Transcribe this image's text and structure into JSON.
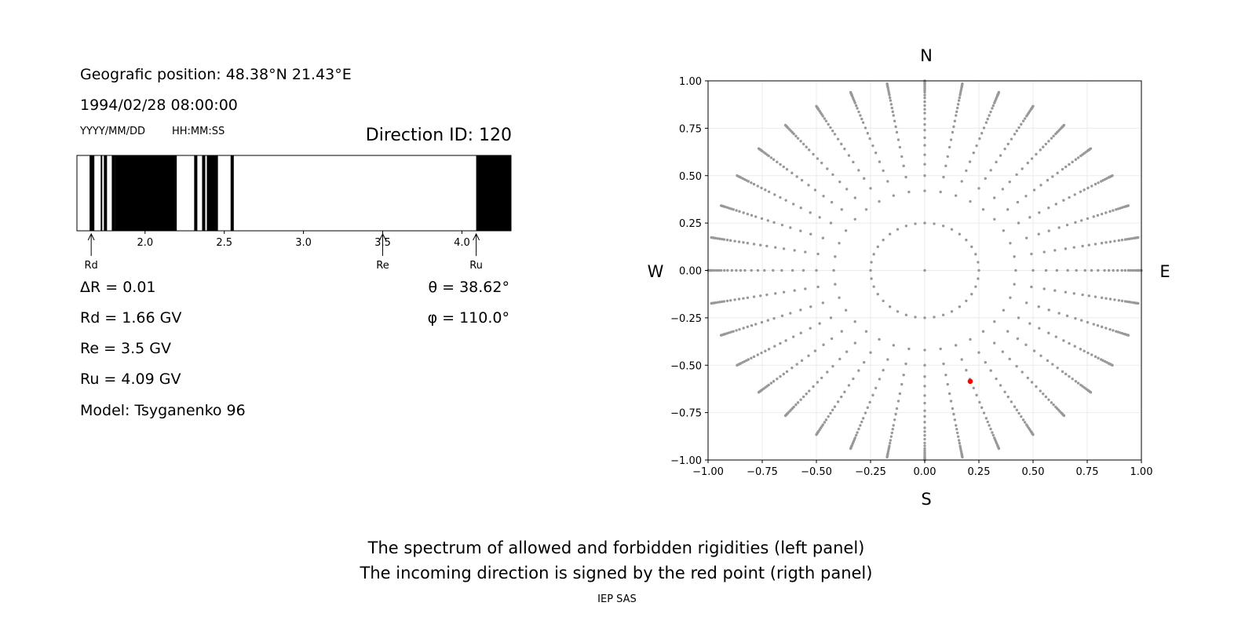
{
  "left_panel": {
    "position_line": "Geografic position: 48.38°N 21.43°E",
    "datetime_line": "1994/02/28 08:00:00",
    "date_format": "YYYY/MM/DD",
    "time_format": "HH:MM:SS",
    "direction_id": "Direction ID: 120",
    "delta_r": "ΔR = 0.01",
    "rd": "Rd = 1.66 GV",
    "re": "Re = 3.5 GV",
    "ru": "Ru = 4.09 GV",
    "model": "Model: Tsyganenko 96",
    "theta": "θ = 38.62°",
    "phi": "φ = 110.0°"
  },
  "right_panel": {
    "north": "N",
    "south": "S",
    "west": "W",
    "east": "E"
  },
  "caption": {
    "line1": "The spectrum of allowed and forbidden rigidities (left panel)",
    "line2": "The incoming direction is signed by the red point (rigth panel)",
    "credit": "IEP SAS"
  },
  "colors": {
    "forbidden": "#000000",
    "grid_dot": "#999999",
    "highlight": "#ff0000",
    "gridline": "#ebebeb"
  },
  "chart_data": [
    {
      "type": "bar",
      "name": "rigidity-spectrum",
      "xlim": [
        1.57,
        4.31
      ],
      "ticks": [
        2.0,
        2.5,
        3.0,
        3.5,
        4.0
      ],
      "tick_labels": [
        "2.0",
        "2.5",
        "3.0",
        "3.5",
        "4.0"
      ],
      "forbidden_intervals": [
        [
          1.65,
          1.68
        ],
        [
          1.72,
          1.73
        ],
        [
          1.74,
          1.76
        ],
        [
          1.79,
          1.81
        ],
        [
          1.81,
          2.2
        ],
        [
          2.31,
          2.33
        ],
        [
          2.36,
          2.38
        ],
        [
          2.39,
          2.46
        ],
        [
          2.54,
          2.56
        ],
        [
          4.09,
          4.31
        ]
      ],
      "markers": [
        {
          "label": "Rd",
          "value": 1.66
        },
        {
          "label": "Re",
          "value": 3.5
        },
        {
          "label": "Ru",
          "value": 4.09
        }
      ]
    },
    {
      "type": "scatter",
      "name": "incoming-directions",
      "xlim": [
        -1.0,
        1.0
      ],
      "ylim": [
        -1.0,
        1.0
      ],
      "ticks": [
        -1.0,
        -0.75,
        -0.5,
        -0.25,
        0.0,
        0.25,
        0.5,
        0.75,
        1.0
      ],
      "tick_labels": [
        "−1.00",
        "−0.75",
        "−0.50",
        "−0.25",
        "0.00",
        "0.25",
        "0.50",
        "0.75",
        "1.00"
      ],
      "grid": true,
      "pattern": {
        "center": [
          0,
          0
        ],
        "inner_ring": {
          "radius": 0.25,
          "points": 36
        },
        "rings": [
          0.42,
          0.5,
          0.56,
          0.61,
          0.66,
          0.7,
          0.74,
          0.77,
          0.8,
          0.83,
          0.85,
          0.87,
          0.89,
          0.91,
          0.925,
          0.94,
          0.95,
          0.96,
          0.97,
          0.98,
          0.985,
          0.99,
          0.995,
          1.0
        ],
        "ray_count": 36,
        "ray_step_deg": 10
      },
      "highlight": {
        "x": 0.21,
        "y": -0.585
      }
    }
  ]
}
